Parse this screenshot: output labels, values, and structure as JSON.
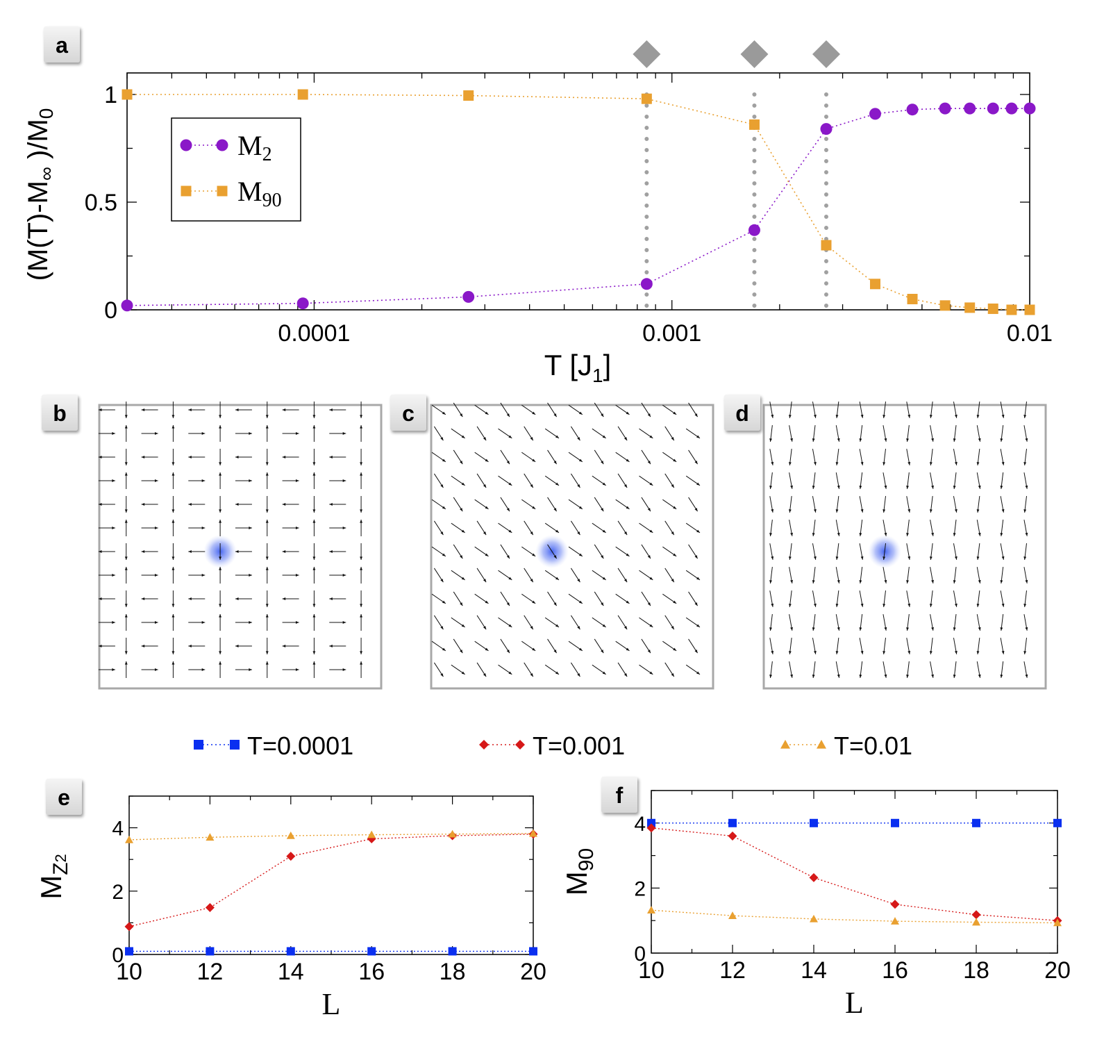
{
  "chart_data": [
    {
      "panel": "a",
      "type": "line",
      "xscale": "log",
      "xlim": [
        3e-05,
        0.01
      ],
      "ylim": [
        0,
        1.1
      ],
      "xlabel": "T [J",
      "xlabel_sub": "1",
      "xlabel_end": "]",
      "ylabel": "(M(T)-M",
      "ylabel_sub_inf": "∞",
      "ylabel_mid": " )/M",
      "ylabel_sub0": "0",
      "xticks": [
        {
          "v": 0.0001,
          "label": "0.0001"
        },
        {
          "v": 0.001,
          "label": "0.001"
        },
        {
          "v": 0.01,
          "label": "0.01"
        }
      ],
      "yticks": [
        {
          "v": 0,
          "label": "0"
        },
        {
          "v": 0.5,
          "label": "0.5"
        },
        {
          "v": 1,
          "label": "1"
        }
      ],
      "vlines": [
        0.00085,
        0.0017,
        0.0027
      ],
      "series": [
        {
          "name": "M",
          "sub": "2",
          "color": "#8a18c8",
          "marker": "circle",
          "x": [
            3e-05,
            9.3e-05,
            0.00027,
            0.00085,
            0.0017,
            0.0027,
            0.0037,
            0.0047,
            0.0058,
            0.0068,
            0.0079,
            0.0089,
            0.01
          ],
          "y": [
            0.02,
            0.03,
            0.06,
            0.12,
            0.37,
            0.84,
            0.91,
            0.93,
            0.935,
            0.935,
            0.935,
            0.935,
            0.935
          ]
        },
        {
          "name": "M",
          "sub": "90",
          "color": "#e9a030",
          "marker": "square",
          "x": [
            3e-05,
            9.3e-05,
            0.00027,
            0.00085,
            0.0017,
            0.0027,
            0.0037,
            0.0047,
            0.0058,
            0.0068,
            0.0079,
            0.0089,
            0.01
          ],
          "y": [
            1.0,
            1.0,
            0.995,
            0.98,
            0.86,
            0.3,
            0.12,
            0.05,
            0.02,
            0.01,
            0.005,
            0.0,
            0.0
          ]
        }
      ]
    },
    {
      "panel": "e",
      "type": "line",
      "xlim": [
        10,
        20
      ],
      "ylim": [
        0,
        5
      ],
      "xlabel": "L",
      "ylabel": "M",
      "ylabel_sub": "Z",
      "ylabel_subsub": "2",
      "xticks": [
        10,
        12,
        14,
        16,
        18,
        20
      ],
      "yticks": [
        0,
        2,
        4
      ],
      "series": [
        {
          "name": "T=0.0001",
          "color": "#0a2ff0",
          "marker": "square",
          "x": [
            10,
            12,
            14,
            16,
            18,
            20
          ],
          "y": [
            0.1,
            0.1,
            0.1,
            0.1,
            0.1,
            0.1
          ]
        },
        {
          "name": "T=0.001",
          "color": "#d61818",
          "marker": "diamond",
          "x": [
            10,
            12,
            14,
            16,
            18,
            20
          ],
          "y": [
            0.88,
            1.48,
            3.1,
            3.65,
            3.75,
            3.8
          ]
        },
        {
          "name": "T=0.01",
          "color": "#e9a030",
          "marker": "triangle",
          "x": [
            10,
            12,
            14,
            16,
            18,
            20
          ],
          "y": [
            3.62,
            3.7,
            3.75,
            3.78,
            3.8,
            3.82
          ]
        }
      ]
    },
    {
      "panel": "f",
      "type": "line",
      "xlim": [
        10,
        20
      ],
      "ylim": [
        0,
        5
      ],
      "xlabel": "L",
      "ylabel": "M",
      "ylabel_sub": "90",
      "xticks": [
        10,
        12,
        14,
        16,
        18,
        20
      ],
      "yticks": [
        0,
        2,
        4
      ],
      "series": [
        {
          "name": "T=0.0001",
          "color": "#0a2ff0",
          "marker": "square",
          "x": [
            10,
            12,
            14,
            16,
            18,
            20
          ],
          "y": [
            4,
            4,
            4,
            4,
            4,
            4
          ]
        },
        {
          "name": "T=0.001",
          "color": "#d61818",
          "marker": "diamond",
          "x": [
            10,
            12,
            14,
            16,
            18,
            20
          ],
          "y": [
            3.85,
            3.6,
            2.32,
            1.5,
            1.18,
            1.0
          ]
        },
        {
          "name": "T=0.01",
          "color": "#e9a030",
          "marker": "triangle",
          "x": [
            10,
            12,
            14,
            16,
            18,
            20
          ],
          "y": [
            1.32,
            1.15,
            1.05,
            0.98,
            0.95,
            0.93
          ]
        }
      ]
    }
  ],
  "legend_top": [
    {
      "label": "T=0.0001",
      "color": "#0a2ff0",
      "marker": "square"
    },
    {
      "label": "T=0.001",
      "color": "#d61818",
      "marker": "diamond"
    },
    {
      "label": "T=0.01",
      "color": "#e9a030",
      "marker": "triangle"
    }
  ],
  "spin_panels": [
    {
      "letter": "b",
      "pattern": "orthogonal"
    },
    {
      "letter": "c",
      "pattern": "diagonal"
    },
    {
      "letter": "d",
      "pattern": "vertical"
    }
  ],
  "panel_letters": {
    "a": "a",
    "e": "e",
    "f": "f"
  }
}
